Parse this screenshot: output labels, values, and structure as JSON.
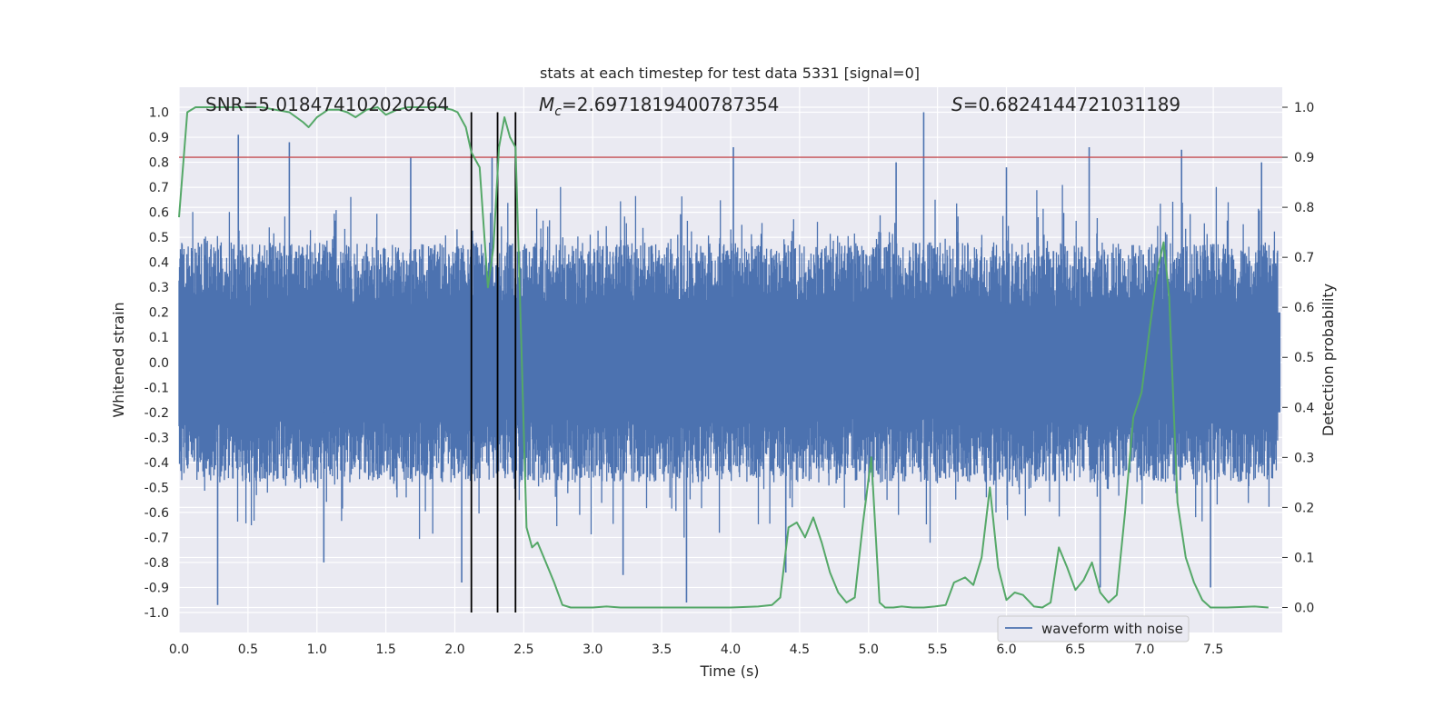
{
  "chart_data": {
    "type": "line",
    "title": "stats at each timestep for test data 5331 [signal=0]",
    "xlabel": "Time (s)",
    "ylabel_left": "Whitened strain",
    "ylabel_right": "Detection probability",
    "xlim": [
      0.0,
      8.0
    ],
    "ylim_left": [
      -1.08,
      1.1
    ],
    "ylim_right": [
      -0.05,
      1.04
    ],
    "x_ticks": [
      "0.0",
      "0.5",
      "1.0",
      "1.5",
      "2.0",
      "2.5",
      "3.0",
      "3.5",
      "4.0",
      "4.5",
      "5.0",
      "5.5",
      "6.0",
      "6.5",
      "7.0",
      "7.5"
    ],
    "y_left_ticks": [
      "1.0",
      "0.9",
      "0.8",
      "0.7",
      "0.6",
      "0.5",
      "0.4",
      "0.3",
      "0.2",
      "0.1",
      "0.0",
      "-0.1",
      "-0.2",
      "-0.3",
      "-0.4",
      "-0.5",
      "-0.6",
      "-0.7",
      "-0.8",
      "-0.9",
      "-1.0"
    ],
    "y_right_ticks": [
      "1.0",
      "0.9",
      "0.8",
      "0.7",
      "0.6",
      "0.5",
      "0.4",
      "0.3",
      "0.2",
      "0.1",
      "0.0"
    ],
    "annotations": {
      "snr": "SNR=5.018474102020264",
      "mc_symbol": "M",
      "mc_sub": "c",
      "mc_value": "=2.6971819400787354",
      "s_symbol": "S",
      "s_value": "=0.6824144721031189"
    },
    "threshold": 0.9,
    "vlines": [
      2.12,
      2.31,
      2.44
    ],
    "legend": {
      "label": "waveform with noise",
      "location": "lower-right"
    },
    "series": [
      {
        "name": "waveform with noise",
        "axis": "left",
        "color": "#4c72b0",
        "note": "dense whitened strain signal, envelope approx +/-0.45 with sparse spikes",
        "spikes": [
          [
            0.28,
            -0.97
          ],
          [
            0.43,
            0.91
          ],
          [
            0.8,
            0.88
          ],
          [
            1.05,
            -0.8
          ],
          [
            1.68,
            0.82
          ],
          [
            2.05,
            -0.88
          ],
          [
            2.27,
            0.82
          ],
          [
            3.22,
            -0.85
          ],
          [
            3.68,
            -0.96
          ],
          [
            4.02,
            0.86
          ],
          [
            4.4,
            -0.84
          ],
          [
            5.4,
            1.0
          ],
          [
            5.2,
            0.8
          ],
          [
            6.0,
            0.78
          ],
          [
            6.6,
            0.86
          ],
          [
            6.68,
            -0.9
          ],
          [
            7.27,
            0.85
          ],
          [
            7.48,
            -0.9
          ],
          [
            7.85,
            0.8
          ]
        ]
      },
      {
        "name": "Detection probability",
        "axis": "right",
        "color": "#55a868",
        "x": [
          0.0,
          0.06,
          0.12,
          0.2,
          0.3,
          0.4,
          0.5,
          0.6,
          0.7,
          0.8,
          0.9,
          0.94,
          1.0,
          1.08,
          1.16,
          1.22,
          1.28,
          1.36,
          1.44,
          1.5,
          1.58,
          1.66,
          1.74,
          1.82,
          1.9,
          1.98,
          2.02,
          2.08,
          2.12,
          2.18,
          2.24,
          2.28,
          2.32,
          2.36,
          2.4,
          2.44,
          2.48,
          2.52,
          2.56,
          2.6,
          2.66,
          2.72,
          2.78,
          2.84,
          2.9,
          3.0,
          3.1,
          3.2,
          3.4,
          3.6,
          3.8,
          4.0,
          4.2,
          4.3,
          4.36,
          4.42,
          4.48,
          4.54,
          4.6,
          4.66,
          4.72,
          4.78,
          4.84,
          4.9,
          4.96,
          5.02,
          5.08,
          5.12,
          5.18,
          5.24,
          5.32,
          5.4,
          5.48,
          5.56,
          5.62,
          5.7,
          5.76,
          5.82,
          5.88,
          5.94,
          6.0,
          6.06,
          6.12,
          6.2,
          6.26,
          6.32,
          6.38,
          6.44,
          6.5,
          6.56,
          6.62,
          6.68,
          6.74,
          6.8,
          6.86,
          6.92,
          6.98,
          7.04,
          7.1,
          7.14,
          7.18,
          7.24,
          7.3,
          7.36,
          7.42,
          7.48,
          7.6,
          7.8,
          7.9
        ],
        "values": [
          0.78,
          0.99,
          1.0,
          1.0,
          1.0,
          1.0,
          1.0,
          1.0,
          0.995,
          0.99,
          0.97,
          0.96,
          0.98,
          0.995,
          0.995,
          0.99,
          0.98,
          0.995,
          1.0,
          0.985,
          0.995,
          1.0,
          1.0,
          1.0,
          1.0,
          0.995,
          0.99,
          0.96,
          0.91,
          0.88,
          0.64,
          0.72,
          0.92,
          0.98,
          0.94,
          0.92,
          0.55,
          0.16,
          0.12,
          0.13,
          0.09,
          0.05,
          0.005,
          0.0,
          0.0,
          0.0,
          0.002,
          0.0,
          0.0,
          0.0,
          0.0,
          0.0,
          0.002,
          0.005,
          0.02,
          0.16,
          0.17,
          0.14,
          0.18,
          0.13,
          0.07,
          0.03,
          0.01,
          0.02,
          0.17,
          0.3,
          0.01,
          0.0,
          0.0,
          0.002,
          0.0,
          0.0,
          0.002,
          0.005,
          0.05,
          0.06,
          0.045,
          0.1,
          0.24,
          0.08,
          0.015,
          0.03,
          0.025,
          0.002,
          0.0,
          0.01,
          0.12,
          0.08,
          0.035,
          0.055,
          0.09,
          0.03,
          0.01,
          0.025,
          0.19,
          0.38,
          0.43,
          0.56,
          0.68,
          0.73,
          0.62,
          0.21,
          0.1,
          0.05,
          0.015,
          0.0,
          0.0,
          0.002,
          0.0
        ]
      }
    ]
  }
}
